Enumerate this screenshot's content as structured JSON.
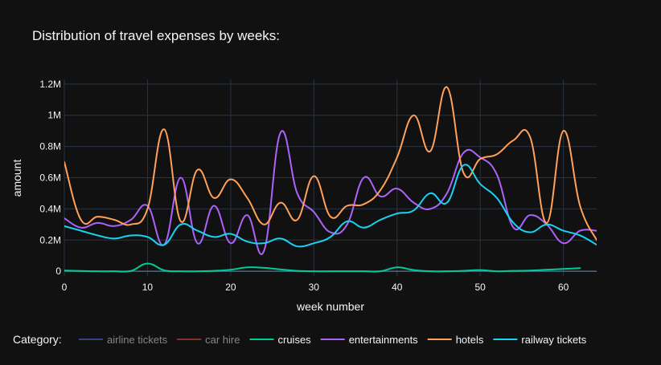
{
  "chart_data": {
    "type": "line",
    "title": "Distribution of travel expenses by weeks:",
    "xlabel": "week number",
    "ylabel": "amount",
    "xlim": [
      0,
      64
    ],
    "ylim": [
      -0.03,
      1.23
    ],
    "y_unit": "millions",
    "grid": true,
    "x_ticks": [
      0,
      10,
      20,
      30,
      40,
      50,
      60
    ],
    "x_tick_labels": [
      "0",
      "10",
      "20",
      "30",
      "40",
      "50",
      "60"
    ],
    "y_ticks": [
      0,
      0.2,
      0.4,
      0.6,
      0.8,
      1.0,
      1.2
    ],
    "y_tick_labels": [
      "0",
      "0.2M",
      "0.4M",
      "0.6M",
      "0.8M",
      "1M",
      "1.2M"
    ],
    "legend_title": "Category:",
    "legend_position": "bottom",
    "series": [
      {
        "name": "airline tickets",
        "color": "#636efa",
        "visible": false,
        "x": [],
        "y": []
      },
      {
        "name": "car hire",
        "color": "#EF553B",
        "visible": false,
        "x": [],
        "y": []
      },
      {
        "name": "cruises",
        "color": "#00cc96",
        "visible": true,
        "x": [
          0,
          2,
          4,
          6,
          8,
          10,
          12,
          14,
          16,
          18,
          20,
          22,
          24,
          26,
          28,
          30,
          32,
          34,
          36,
          38,
          40,
          42,
          44,
          46,
          48,
          50,
          52,
          54,
          56,
          58,
          60,
          62
        ],
        "y": [
          0.005,
          0.002,
          0.0,
          0.0,
          0.002,
          0.05,
          0.006,
          0.0,
          0.0,
          0.003,
          0.01,
          0.025,
          0.022,
          0.012,
          0.003,
          0.0,
          0.0,
          0.0,
          0.0,
          0.0,
          0.025,
          0.008,
          0.0,
          0.0,
          0.003,
          0.008,
          0.0,
          0.003,
          0.005,
          0.01,
          0.015,
          0.02
        ]
      },
      {
        "name": "entertainments",
        "color": "#ab63fa",
        "visible": true,
        "x": [
          0,
          2,
          4,
          6,
          8,
          10,
          12,
          14,
          16,
          18,
          20,
          22,
          24,
          26,
          28,
          30,
          32,
          34,
          36,
          38,
          40,
          42,
          44,
          46,
          48,
          50,
          52,
          54,
          56,
          58,
          60,
          62,
          64
        ],
        "y": [
          0.34,
          0.28,
          0.31,
          0.29,
          0.33,
          0.42,
          0.17,
          0.6,
          0.18,
          0.42,
          0.18,
          0.36,
          0.13,
          0.89,
          0.5,
          0.38,
          0.25,
          0.3,
          0.6,
          0.48,
          0.53,
          0.44,
          0.4,
          0.5,
          0.76,
          0.73,
          0.62,
          0.28,
          0.36,
          0.3,
          0.18,
          0.26,
          0.26
        ]
      },
      {
        "name": "hotels",
        "color": "#FFA15A",
        "visible": true,
        "x": [
          0,
          2,
          4,
          6,
          8,
          10,
          12,
          14,
          16,
          18,
          20,
          22,
          24,
          26,
          28,
          30,
          32,
          34,
          36,
          38,
          40,
          42,
          44,
          46,
          48,
          50,
          52,
          54,
          56,
          58,
          60,
          62,
          64
        ],
        "y": [
          0.7,
          0.33,
          0.35,
          0.33,
          0.3,
          0.4,
          0.91,
          0.32,
          0.65,
          0.47,
          0.59,
          0.47,
          0.3,
          0.44,
          0.33,
          0.61,
          0.35,
          0.42,
          0.43,
          0.52,
          0.73,
          1.0,
          0.77,
          1.18,
          0.63,
          0.72,
          0.75,
          0.84,
          0.86,
          0.31,
          0.9,
          0.42,
          0.2
        ]
      },
      {
        "name": "railway tickets",
        "color": "#19d3f3",
        "visible": true,
        "x": [
          0,
          2,
          4,
          6,
          8,
          10,
          12,
          14,
          16,
          18,
          20,
          22,
          24,
          26,
          28,
          30,
          32,
          34,
          36,
          38,
          40,
          42,
          44,
          46,
          48,
          50,
          52,
          54,
          56,
          58,
          60,
          62,
          64
        ],
        "y": [
          0.29,
          0.26,
          0.23,
          0.21,
          0.23,
          0.22,
          0.17,
          0.3,
          0.26,
          0.22,
          0.24,
          0.19,
          0.18,
          0.21,
          0.16,
          0.18,
          0.22,
          0.32,
          0.28,
          0.33,
          0.37,
          0.39,
          0.5,
          0.44,
          0.68,
          0.56,
          0.47,
          0.31,
          0.25,
          0.3,
          0.26,
          0.23,
          0.17
        ]
      }
    ]
  }
}
